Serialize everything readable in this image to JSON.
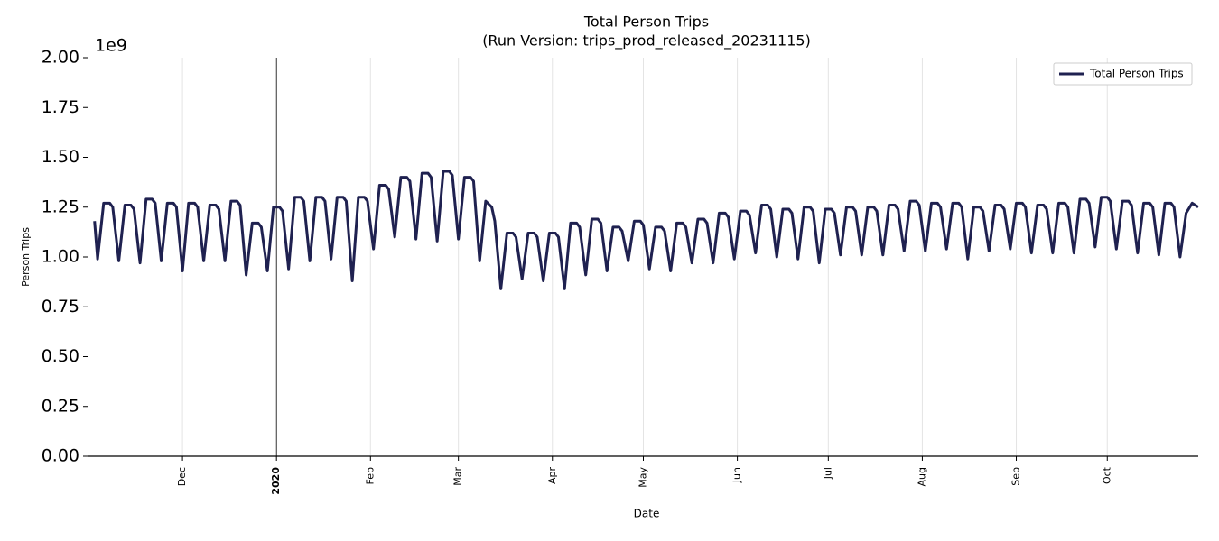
{
  "chart_data": {
    "type": "line",
    "title": "Total Person Trips",
    "subtitle": "(Run Version: trips_prod_released_20231115)",
    "x_label": "Date",
    "y_label": "Person Trips",
    "y_offset_label": "1e9",
    "xlim": [
      -62,
      304
    ],
    "ylim": [
      0,
      2
    ],
    "xticks": [
      {
        "value": -31,
        "label": "Dec"
      },
      {
        "value": 0,
        "label": "2020",
        "emphasis": true
      },
      {
        "value": 31,
        "label": "Feb"
      },
      {
        "value": 60,
        "label": "Mar"
      },
      {
        "value": 91,
        "label": "Apr"
      },
      {
        "value": 121,
        "label": "May"
      },
      {
        "value": 152,
        "label": "Jun"
      },
      {
        "value": 182,
        "label": "Jul"
      },
      {
        "value": 213,
        "label": "Aug"
      },
      {
        "value": 244,
        "label": "Sep"
      },
      {
        "value": 274,
        "label": "Oct"
      }
    ],
    "yticks": [
      {
        "value": 0,
        "label": "0.00"
      },
      0.25,
      {
        "value": 0.5,
        "label": "0.50"
      },
      0.75,
      {
        "value": 1,
        "label": "1.00"
      },
      1.25,
      {
        "value": 1.5,
        "label": "1.50"
      },
      1.75,
      {
        "value": 2,
        "label": "2.00"
      }
    ],
    "grid": "x",
    "legend": "upper right",
    "x": [
      -60,
      -59,
      -57,
      -55,
      -54,
      -52,
      -50,
      -48,
      -47,
      -45,
      -43,
      -41,
      -40,
      -38,
      -36,
      -34,
      -33,
      -31,
      -29,
      -27,
      -26,
      -24,
      -22,
      -20,
      -19,
      -17,
      -15,
      -13,
      -12,
      -10,
      -8,
      -6,
      -5,
      -3,
      -1,
      1,
      2,
      4,
      6,
      8,
      9,
      11,
      13,
      15,
      16,
      18,
      20,
      22,
      23,
      25,
      27,
      29,
      30,
      32,
      34,
      36,
      37,
      39,
      41,
      43,
      44,
      46,
      48,
      50,
      51,
      53,
      55,
      57,
      58,
      60,
      62,
      64,
      65,
      67,
      69,
      71,
      72,
      74,
      76,
      78,
      79,
      81,
      83,
      85,
      86,
      88,
      90,
      92,
      93,
      95,
      97,
      99,
      100,
      102,
      104,
      106,
      107,
      109,
      111,
      113,
      114,
      116,
      118,
      120,
      121,
      123,
      125,
      127,
      128,
      130,
      132,
      134,
      135,
      137,
      139,
      141,
      142,
      144,
      146,
      148,
      149,
      151,
      153,
      155,
      156,
      158,
      160,
      162,
      163,
      165,
      167,
      169,
      170,
      172,
      174,
      176,
      177,
      179,
      181,
      183,
      184,
      186,
      188,
      190,
      191,
      193,
      195,
      197,
      198,
      200,
      202,
      204,
      205,
      207,
      209,
      211,
      212,
      214,
      216,
      218,
      219,
      221,
      223,
      225,
      226,
      228,
      230,
      232,
      233,
      235,
      237,
      239,
      240,
      242,
      244,
      246,
      247,
      249,
      251,
      253,
      254,
      256,
      258,
      260,
      261,
      263,
      265,
      267,
      268,
      270,
      272,
      274,
      275,
      277,
      279,
      281,
      282,
      284,
      286,
      288,
      289,
      291,
      293,
      295,
      296,
      298,
      300,
      302,
      304
    ],
    "series": [
      {
        "name": "Total Person Trips",
        "color": "#1f2150",
        "values": [
          1.18,
          0.99,
          1.27,
          1.27,
          1.25,
          0.98,
          1.26,
          1.26,
          1.24,
          0.97,
          1.29,
          1.29,
          1.27,
          0.98,
          1.27,
          1.27,
          1.25,
          0.93,
          1.27,
          1.27,
          1.25,
          0.98,
          1.26,
          1.26,
          1.24,
          0.98,
          1.28,
          1.28,
          1.26,
          0.91,
          1.17,
          1.17,
          1.15,
          0.93,
          1.25,
          1.25,
          1.23,
          0.94,
          1.3,
          1.3,
          1.28,
          0.98,
          1.3,
          1.3,
          1.28,
          0.99,
          1.3,
          1.3,
          1.28,
          0.88,
          1.3,
          1.3,
          1.28,
          1.04,
          1.36,
          1.36,
          1.34,
          1.1,
          1.4,
          1.4,
          1.38,
          1.09,
          1.42,
          1.42,
          1.4,
          1.08,
          1.43,
          1.43,
          1.41,
          1.09,
          1.4,
          1.4,
          1.38,
          0.98,
          1.28,
          1.25,
          1.18,
          0.84,
          1.12,
          1.12,
          1.1,
          0.89,
          1.12,
          1.12,
          1.1,
          0.88,
          1.12,
          1.12,
          1.1,
          0.84,
          1.17,
          1.17,
          1.15,
          0.91,
          1.19,
          1.19,
          1.17,
          0.93,
          1.15,
          1.15,
          1.13,
          0.98,
          1.18,
          1.18,
          1.16,
          0.94,
          1.15,
          1.15,
          1.13,
          0.93,
          1.17,
          1.17,
          1.15,
          0.97,
          1.19,
          1.19,
          1.17,
          0.97,
          1.22,
          1.22,
          1.2,
          0.99,
          1.23,
          1.23,
          1.21,
          1.02,
          1.26,
          1.26,
          1.24,
          1.0,
          1.24,
          1.24,
          1.22,
          0.99,
          1.25,
          1.25,
          1.23,
          0.97,
          1.24,
          1.24,
          1.22,
          1.01,
          1.25,
          1.25,
          1.23,
          1.01,
          1.25,
          1.25,
          1.23,
          1.01,
          1.26,
          1.26,
          1.24,
          1.03,
          1.28,
          1.28,
          1.26,
          1.03,
          1.27,
          1.27,
          1.25,
          1.04,
          1.27,
          1.27,
          1.25,
          0.99,
          1.25,
          1.25,
          1.23,
          1.03,
          1.26,
          1.26,
          1.24,
          1.04,
          1.27,
          1.27,
          1.25,
          1.02,
          1.26,
          1.26,
          1.24,
          1.02,
          1.27,
          1.27,
          1.25,
          1.02,
          1.29,
          1.29,
          1.27,
          1.05,
          1.3,
          1.3,
          1.28,
          1.04,
          1.28,
          1.28,
          1.26,
          1.02,
          1.27,
          1.27,
          1.25,
          1.01,
          1.27,
          1.27,
          1.25,
          1.0,
          1.22,
          1.27,
          1.25
        ]
      }
    ]
  }
}
